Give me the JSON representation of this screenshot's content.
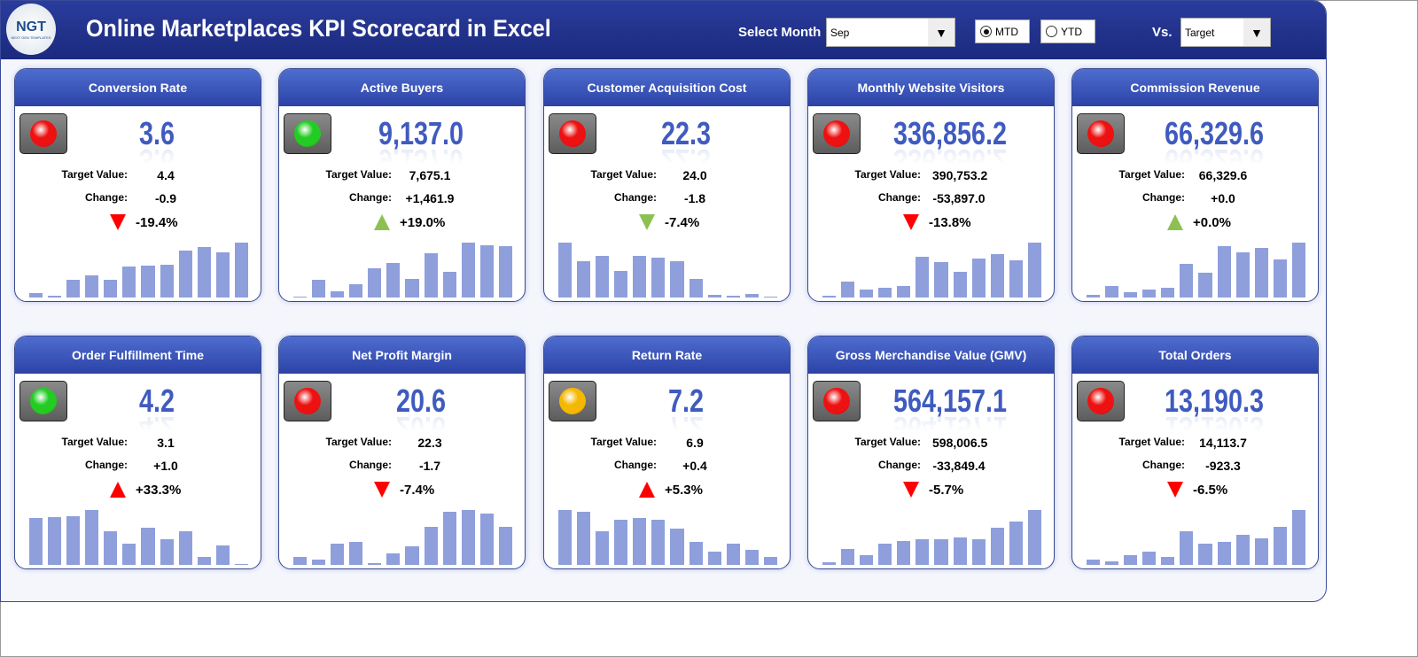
{
  "header": {
    "logo_text": "NGT",
    "logo_sub": "NEXT GEN TEMPLATES",
    "title": "Online Marketplaces KPI Scorecard in Excel",
    "select_month_label": "Select Month",
    "month": "Sep",
    "mtd_label": "MTD",
    "ytd_label": "YTD",
    "selected_mode": "MTD",
    "vs_label": "Vs.",
    "vs_value": "Target"
  },
  "colors": {
    "red": "#ee1111",
    "green": "#22cc22",
    "amber": "#f5b800",
    "arrow_red": "#ff0000",
    "arrow_green": "#8cc152",
    "accent": "#3f5bbf"
  },
  "cards": [
    {
      "title": "Conversion Rate",
      "status": "red",
      "value": "3.6",
      "target_label": "Target Value:",
      "target": "4.4",
      "change_label": "Change:",
      "change": "-0.9",
      "direction": "down",
      "arrow_color": "red",
      "pct": "-19.4%",
      "trend": [
        5,
        2,
        18,
        23,
        18,
        32,
        33,
        34,
        49,
        52,
        47,
        57
      ]
    },
    {
      "title": "Active Buyers",
      "status": "green",
      "value": "9,137.0",
      "target_label": "Target Value:",
      "target": "7,675.1",
      "change_label": "Change:",
      "change": "+1,461.9",
      "direction": "up",
      "arrow_color": "green",
      "pct": "+19.0%",
      "trend": [
        1,
        18,
        6,
        14,
        30,
        36,
        19,
        46,
        27,
        57,
        54,
        53
      ]
    },
    {
      "title": "Customer Acquisition Cost",
      "status": "red",
      "value": "22.3",
      "target_label": "Target Value:",
      "target": "24.0",
      "change_label": "Change:",
      "change": "-1.8",
      "direction": "down",
      "arrow_color": "green",
      "pct": "-7.4%",
      "trend": [
        58,
        38,
        44,
        28,
        44,
        42,
        38,
        20,
        3,
        2,
        4,
        1
      ]
    },
    {
      "title": "Monthly Website Visitors",
      "status": "red",
      "value": "336,856.2",
      "target_label": "Target Value:",
      "target": "390,753.2",
      "change_label": "Change:",
      "change": "-53,897.0",
      "direction": "down",
      "arrow_color": "red",
      "pct": "-13.8%",
      "trend": [
        2,
        16,
        8,
        10,
        12,
        42,
        36,
        26,
        40,
        44,
        38,
        56
      ]
    },
    {
      "title": "Commission Revenue",
      "status": "red",
      "value": "66,329.6",
      "target_label": "Target Value:",
      "target": "66,329.6",
      "change_label": "Change:",
      "change": "+0.0",
      "direction": "up",
      "arrow_color": "green",
      "pct": "+0.0%",
      "trend": [
        3,
        12,
        6,
        8,
        10,
        36,
        26,
        54,
        48,
        52,
        40,
        58
      ]
    },
    {
      "title": "Order Fulfillment Time",
      "status": "green",
      "value": "4.2",
      "target_label": "Target Value:",
      "target": "3.1",
      "change_label": "Change:",
      "change": "+1.0",
      "direction": "up",
      "arrow_color": "red",
      "pct": "+33.3%",
      "trend": [
        48,
        49,
        50,
        56,
        34,
        22,
        38,
        26,
        34,
        8,
        20,
        1
      ]
    },
    {
      "title": "Net Profit Margin",
      "status": "red",
      "value": "20.6",
      "target_label": "Target Value:",
      "target": "22.3",
      "change_label": "Change:",
      "change": "-1.7",
      "direction": "down",
      "arrow_color": "red",
      "pct": "-7.4%",
      "trend": [
        8,
        6,
        22,
        24,
        2,
        12,
        20,
        40,
        56,
        58,
        54,
        40
      ]
    },
    {
      "title": "Return Rate",
      "status": "amber",
      "value": "7.2",
      "target_label": "Target Value:",
      "target": "6.9",
      "change_label": "Change:",
      "change": "+0.4",
      "direction": "up",
      "arrow_color": "red",
      "pct": "+5.3%",
      "trend": [
        58,
        56,
        36,
        48,
        50,
        48,
        38,
        24,
        14,
        22,
        16,
        8
      ]
    },
    {
      "title": "Gross Merchandise Value (GMV)",
      "status": "red",
      "value": "564,157.1",
      "target_label": "Target Value:",
      "target": "598,006.5",
      "change_label": "Change:",
      "change": "-33,849.4",
      "direction": "down",
      "arrow_color": "red",
      "pct": "-5.7%",
      "trend": [
        3,
        16,
        10,
        22,
        24,
        26,
        26,
        28,
        26,
        38,
        44,
        56
      ]
    },
    {
      "title": "Total Orders",
      "status": "red",
      "value": "13,190.3",
      "target_label": "Target Value:",
      "target": "14,113.7",
      "change_label": "Change:",
      "change": "-923.3",
      "direction": "down",
      "arrow_color": "red",
      "pct": "-6.5%",
      "trend": [
        6,
        4,
        10,
        14,
        8,
        36,
        22,
        24,
        32,
        28,
        40,
        58
      ]
    }
  ]
}
